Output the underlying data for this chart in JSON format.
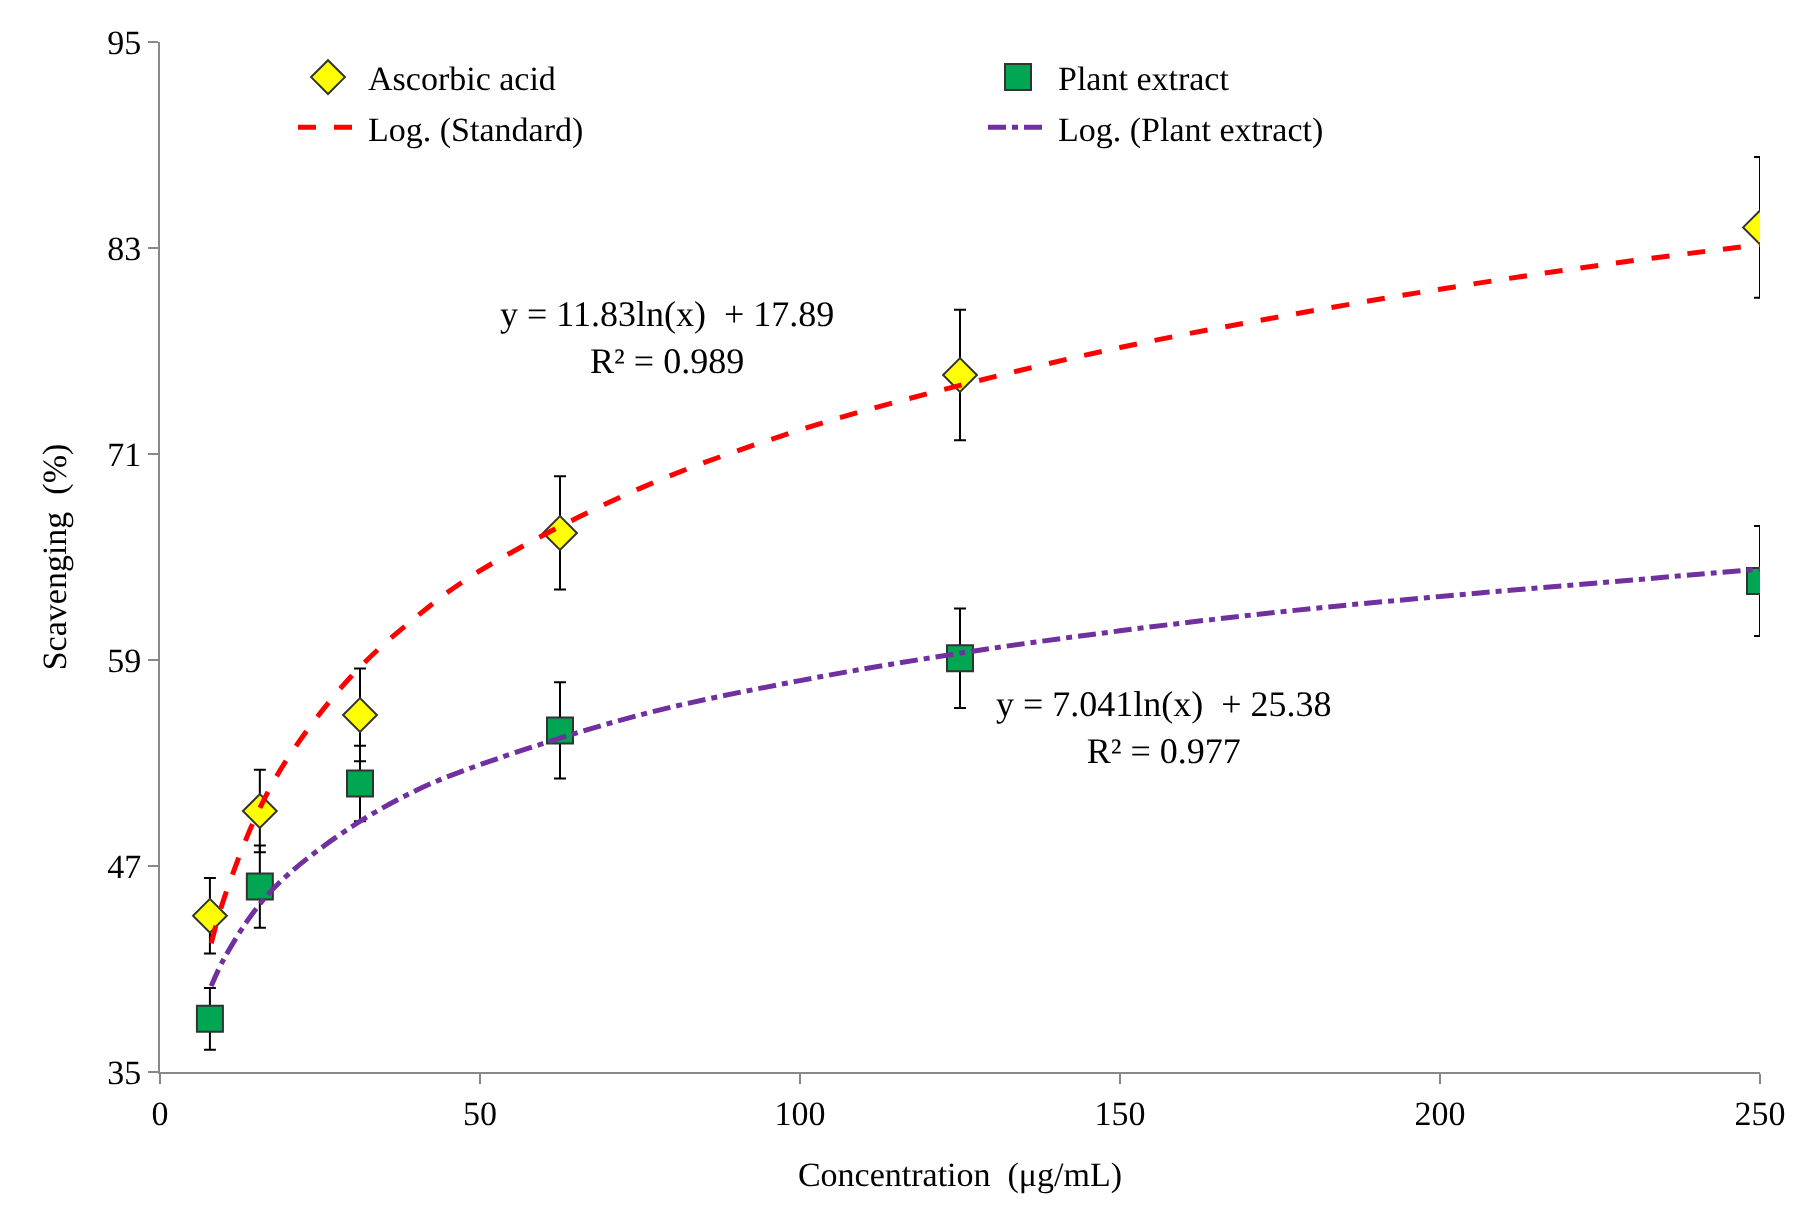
{
  "chart_data": {
    "type": "scatter",
    "xlabel": "Concentration  (μg/mL)",
    "ylabel": "Scavenging  (%)",
    "xlim": [
      0,
      250
    ],
    "xticks": [
      0,
      50,
      100,
      150,
      200,
      250
    ],
    "ylim": [
      35,
      95
    ],
    "yticks": [
      35,
      47,
      59,
      71,
      83,
      95
    ],
    "grid": false,
    "legend": "top",
    "series": [
      {
        "name": "Ascorbic acid",
        "marker": "diamond",
        "color": "#ffff00",
        "x": [
          7.8,
          15.6,
          31.25,
          62.5,
          125,
          250
        ],
        "values": [
          44.1,
          50.2,
          55.8,
          66.4,
          75.6,
          84.2
        ],
        "errors": [
          2.2,
          2.4,
          2.7,
          3.3,
          3.8,
          4.1
        ]
      },
      {
        "name": "Plant extract",
        "marker": "square",
        "color": "#00a651",
        "x": [
          7.8,
          15.6,
          31.25,
          62.5,
          125,
          250
        ],
        "values": [
          38.1,
          45.8,
          51.8,
          54.9,
          59.1,
          63.6
        ],
        "errors": [
          1.8,
          2.4,
          2.2,
          2.8,
          2.9,
          3.2
        ]
      },
      {
        "name": "Log. (Standard)",
        "type": "line",
        "marker": "none",
        "line_style": "dashed",
        "color": "#ff0000",
        "x": [
          8,
          10,
          15,
          20,
          30,
          40,
          50,
          75,
          100,
          125,
          150,
          175,
          200,
          225,
          250
        ],
        "values": [
          42.5,
          45.1,
          49.9,
          53.3,
          58.1,
          61.5,
          64.2,
          69.0,
          72.4,
          75.0,
          77.2,
          79.0,
          80.6,
          82.0,
          83.2
        ]
      },
      {
        "name": "Log. (Plant extract)",
        "type": "line",
        "marker": "none",
        "line_style": "dashdot",
        "color": "#7030a0",
        "x": [
          8,
          10,
          15,
          20,
          30,
          40,
          50,
          75,
          100,
          125,
          150,
          175,
          200,
          225,
          250
        ],
        "values": [
          40.0,
          41.6,
          44.5,
          46.5,
          49.3,
          51.4,
          52.9,
          55.8,
          57.8,
          59.4,
          60.7,
          61.8,
          62.7,
          63.5,
          64.3
        ]
      }
    ],
    "annotations": [
      "y = 11.83ln(x)  + 17.89\nR² = 0.989",
      "y = 7.041ln(x)  + 25.38\nR² = 0.977"
    ]
  }
}
